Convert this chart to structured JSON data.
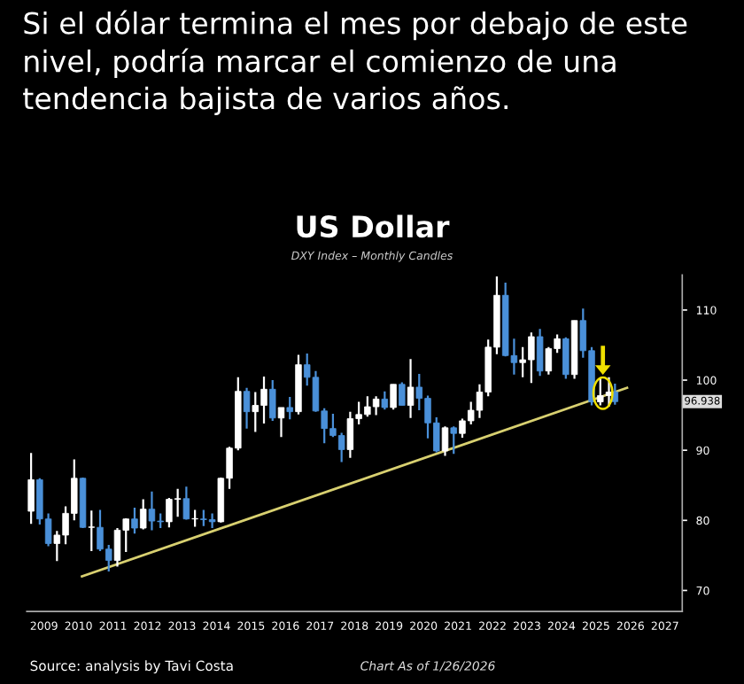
{
  "chart_data": {
    "type": "candlestick",
    "title": "Si el dólar termina el mes por debajo de este nivel, podría marcar el comienzo de una tendencia bajista de varios años.",
    "subtitle": "US Dollar",
    "annotations": [
      "Source: analysis by Tavi Costa",
      "Chart As of 1/26/2026",
      "96.938",
      "DXY Index – Monthly Candles"
    ],
    "x": [
      2009.125,
      2009.375,
      2009.625,
      2009.875,
      2010.125,
      2010.375,
      2010.625,
      2010.875,
      2011.125,
      2011.375,
      2011.625,
      2011.875,
      2012.125,
      2012.375,
      2012.625,
      2012.875,
      2013.125,
      2013.375,
      2013.625,
      2013.875,
      2014.125,
      2014.375,
      2014.625,
      2014.875,
      2015.125,
      2015.375,
      2015.625,
      2015.875,
      2016.125,
      2016.375,
      2016.625,
      2016.875,
      2017.125,
      2017.375,
      2017.625,
      2017.875,
      2018.125,
      2018.375,
      2018.625,
      2018.875,
      2019.125,
      2019.375,
      2019.625,
      2019.875,
      2020.125,
      2020.375,
      2020.625,
      2020.875,
      2021.125,
      2021.375,
      2021.625,
      2021.875,
      2022.125,
      2022.375,
      2022.625,
      2022.875,
      2023.125,
      2023.375,
      2023.625,
      2023.875,
      2024.125,
      2024.375,
      2024.625,
      2024.875,
      2025.125,
      2025.375,
      2025.625,
      2025.875,
      2026.05
    ],
    "ohlc": [
      [
        81.3,
        89.6,
        79.5,
        85.8
      ],
      [
        85.8,
        86.0,
        79.4,
        80.2
      ],
      [
        80.2,
        81.0,
        76.3,
        76.7
      ],
      [
        76.7,
        78.5,
        74.2,
        77.9
      ],
      [
        77.9,
        82.0,
        76.6,
        81.0
      ],
      [
        81.0,
        88.7,
        80.0,
        86.0
      ],
      [
        86.0,
        86.1,
        78.9,
        79.0
      ],
      [
        79.0,
        81.4,
        75.6,
        79.0
      ],
      [
        79.0,
        81.5,
        75.6,
        75.9
      ],
      [
        75.9,
        76.5,
        72.7,
        74.3
      ],
      [
        74.3,
        78.9,
        73.4,
        78.6
      ],
      [
        78.6,
        80.3,
        75.5,
        80.2
      ],
      [
        80.2,
        81.8,
        78.1,
        78.9
      ],
      [
        78.9,
        83.0,
        78.7,
        81.6
      ],
      [
        81.6,
        84.1,
        78.6,
        79.9
      ],
      [
        79.9,
        81.0,
        78.9,
        79.8
      ],
      [
        79.8,
        83.2,
        79.0,
        83.0
      ],
      [
        83.0,
        84.5,
        80.5,
        83.1
      ],
      [
        83.1,
        84.8,
        80.1,
        80.2
      ],
      [
        80.2,
        81.5,
        79.1,
        80.2
      ],
      [
        80.2,
        81.5,
        79.2,
        80.1
      ],
      [
        80.1,
        81.0,
        78.9,
        79.8
      ],
      [
        79.8,
        86.1,
        79.7,
        86.0
      ],
      [
        86.0,
        90.5,
        84.5,
        90.3
      ],
      [
        90.3,
        100.4,
        90.0,
        98.4
      ],
      [
        98.4,
        98.9,
        93.1,
        95.5
      ],
      [
        95.5,
        98.3,
        92.6,
        96.4
      ],
      [
        96.4,
        100.5,
        93.8,
        98.7
      ],
      [
        98.7,
        100.0,
        94.2,
        94.6
      ],
      [
        94.6,
        96.1,
        91.9,
        96.1
      ],
      [
        96.1,
        97.6,
        94.4,
        95.5
      ],
      [
        95.5,
        103.6,
        95.1,
        102.2
      ],
      [
        102.2,
        103.8,
        99.2,
        100.4
      ],
      [
        100.4,
        101.3,
        95.5,
        95.6
      ],
      [
        95.6,
        96.0,
        91.0,
        93.1
      ],
      [
        93.1,
        95.2,
        91.9,
        92.1
      ],
      [
        92.1,
        92.5,
        88.3,
        90.1
      ],
      [
        90.1,
        95.5,
        88.9,
        94.5
      ],
      [
        94.5,
        96.9,
        93.7,
        95.1
      ],
      [
        95.1,
        97.7,
        94.8,
        96.2
      ],
      [
        96.2,
        97.7,
        95.0,
        97.3
      ],
      [
        97.3,
        98.4,
        95.8,
        96.1
      ],
      [
        96.1,
        99.4,
        95.8,
        99.4
      ],
      [
        99.4,
        99.7,
        96.4,
        96.4
      ],
      [
        96.4,
        103.0,
        94.6,
        99.0
      ],
      [
        99.0,
        100.9,
        95.7,
        97.4
      ],
      [
        97.4,
        97.8,
        91.7,
        93.9
      ],
      [
        93.9,
        94.7,
        89.7,
        89.9
      ],
      [
        89.9,
        93.4,
        89.2,
        93.2
      ],
      [
        93.2,
        93.4,
        89.5,
        92.4
      ],
      [
        92.4,
        94.5,
        91.8,
        94.2
      ],
      [
        94.2,
        96.9,
        93.7,
        95.7
      ],
      [
        95.7,
        99.4,
        94.6,
        98.3
      ],
      [
        98.3,
        105.8,
        97.7,
        104.7
      ],
      [
        104.7,
        114.8,
        103.7,
        112.1
      ],
      [
        112.1,
        113.9,
        103.4,
        103.5
      ],
      [
        103.5,
        105.9,
        100.8,
        102.5
      ],
      [
        102.5,
        104.7,
        100.4,
        102.9
      ],
      [
        102.9,
        106.8,
        99.6,
        106.2
      ],
      [
        106.2,
        107.3,
        100.6,
        101.3
      ],
      [
        101.3,
        104.7,
        100.8,
        104.5
      ],
      [
        104.5,
        106.5,
        103.9,
        105.9
      ],
      [
        105.9,
        106.1,
        100.2,
        100.8
      ],
      [
        100.8,
        108.5,
        100.2,
        108.5
      ],
      [
        108.5,
        110.2,
        103.2,
        104.2
      ],
      [
        104.2,
        104.7,
        96.4,
        96.9
      ],
      [
        96.9,
        100.3,
        96.4,
        97.8
      ],
      [
        97.8,
        100.4,
        96.2,
        98.3
      ],
      [
        98.3,
        99.5,
        96.5,
        96.938
      ]
    ],
    "colors": [
      "#ffffff",
      "#4a90d9",
      "#4a90d9",
      "#ffffff",
      "#ffffff",
      "#ffffff",
      "#4a90d9",
      "#ffffff",
      "#4a90d9",
      "#4a90d9",
      "#ffffff",
      "#ffffff",
      "#4a90d9",
      "#ffffff",
      "#4a90d9",
      "#4a90d9",
      "#ffffff",
      "#ffffff",
      "#4a90d9",
      "#ffffff",
      "#4a90d9",
      "#4a90d9",
      "#ffffff",
      "#ffffff",
      "#ffffff",
      "#4a90d9",
      "#ffffff",
      "#ffffff",
      "#4a90d9",
      "#ffffff",
      "#4a90d9",
      "#ffffff",
      "#4a90d9",
      "#4a90d9",
      "#4a90d9",
      "#4a90d9",
      "#4a90d9",
      "#ffffff",
      "#ffffff",
      "#ffffff",
      "#ffffff",
      "#4a90d9",
      "#ffffff",
      "#4a90d9",
      "#ffffff",
      "#4a90d9",
      "#4a90d9",
      "#4a90d9",
      "#ffffff",
      "#4a90d9",
      "#ffffff",
      "#ffffff",
      "#ffffff",
      "#ffffff",
      "#ffffff",
      "#4a90d9",
      "#4a90d9",
      "#ffffff",
      "#ffffff",
      "#4a90d9",
      "#ffffff",
      "#ffffff",
      "#4a90d9",
      "#ffffff",
      "#4a90d9",
      "#4a90d9",
      "#ffffff",
      "#ffffff",
      "#4a90d9"
    ],
    "series": [
      {
        "type": "line",
        "color": "#d8d070",
        "x": [
          2010.6,
          2026.4
        ],
        "values": [
          72,
          98.9
        ]
      }
    ],
    "xlim": [
      2009,
      2028
    ],
    "ylim": [
      67,
      115
    ],
    "xticks": [
      {
        "value": 2009.5,
        "label": "2009"
      },
      {
        "value": 2010.5,
        "label": "2010"
      },
      {
        "value": 2011.5,
        "label": "2011"
      },
      {
        "value": 2012.5,
        "label": "2012"
      },
      {
        "value": 2013.5,
        "label": "2013"
      },
      {
        "value": 2014.5,
        "label": "2014"
      },
      {
        "value": 2015.5,
        "label": "2015"
      },
      {
        "value": 2016.5,
        "label": "2016"
      },
      {
        "value": 2017.5,
        "label": "2017"
      },
      {
        "value": 2018.5,
        "label": "2018"
      },
      {
        "value": 2019.5,
        "label": "2019"
      },
      {
        "value": 2020.5,
        "label": "2020"
      },
      {
        "value": 2021.5,
        "label": "2021"
      },
      {
        "value": 2022.5,
        "label": "2022"
      },
      {
        "value": 2023.5,
        "label": "2023"
      },
      {
        "value": 2024.5,
        "label": "2024"
      },
      {
        "value": 2025.5,
        "label": "2025"
      },
      {
        "value": 2026.5,
        "label": "2026"
      },
      {
        "value": 2027.5,
        "label": "2027"
      }
    ],
    "yticks": [
      70,
      80,
      90,
      100,
      110
    ],
    "grid": false,
    "legend": false
  }
}
